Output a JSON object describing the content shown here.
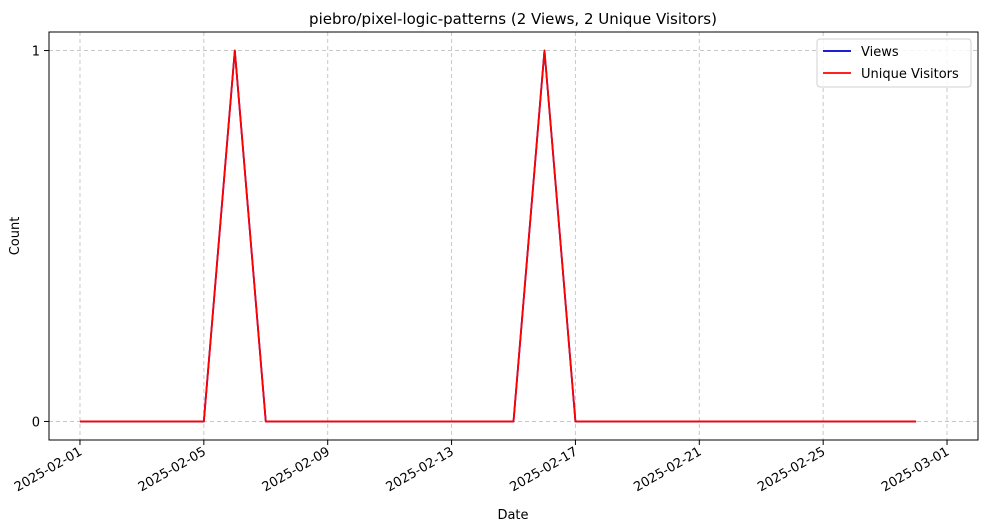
{
  "chart_data": {
    "type": "line",
    "title": "piebro/pixel-logic-patterns (2 Views, 2 Unique Visitors)",
    "xlabel": "Date",
    "ylabel": "Count",
    "x": [
      "2025-02-01",
      "2025-02-02",
      "2025-02-03",
      "2025-02-04",
      "2025-02-05",
      "2025-02-06",
      "2025-02-07",
      "2025-02-08",
      "2025-02-09",
      "2025-02-10",
      "2025-02-11",
      "2025-02-12",
      "2025-02-13",
      "2025-02-14",
      "2025-02-15",
      "2025-02-16",
      "2025-02-17",
      "2025-02-18",
      "2025-02-19",
      "2025-02-20",
      "2025-02-21",
      "2025-02-22",
      "2025-02-23",
      "2025-02-24",
      "2025-02-25",
      "2025-02-26",
      "2025-02-27",
      "2025-02-28"
    ],
    "series": [
      {
        "name": "Views",
        "color": "#0000cc",
        "values": [
          0,
          0,
          0,
          0,
          0,
          1,
          0,
          0,
          0,
          0,
          0,
          0,
          0,
          0,
          0,
          1,
          0,
          0,
          0,
          0,
          0,
          0,
          0,
          0,
          0,
          0,
          0,
          0
        ]
      },
      {
        "name": "Unique Visitors",
        "color": "#ff0000",
        "values": [
          0,
          0,
          0,
          0,
          0,
          1,
          0,
          0,
          0,
          0,
          0,
          0,
          0,
          0,
          0,
          1,
          0,
          0,
          0,
          0,
          0,
          0,
          0,
          0,
          0,
          0,
          0,
          0
        ]
      }
    ],
    "x_ticks": [
      "2025-02-01",
      "2025-02-05",
      "2025-02-09",
      "2025-02-13",
      "2025-02-17",
      "2025-02-21",
      "2025-02-25",
      "2025-03-01"
    ],
    "y_ticks": [
      0,
      1
    ],
    "xlim": [
      "2025-01-31",
      "2025-03-02"
    ],
    "ylim": [
      -0.05,
      1.05
    ],
    "grid": true,
    "legend": "top-right"
  }
}
